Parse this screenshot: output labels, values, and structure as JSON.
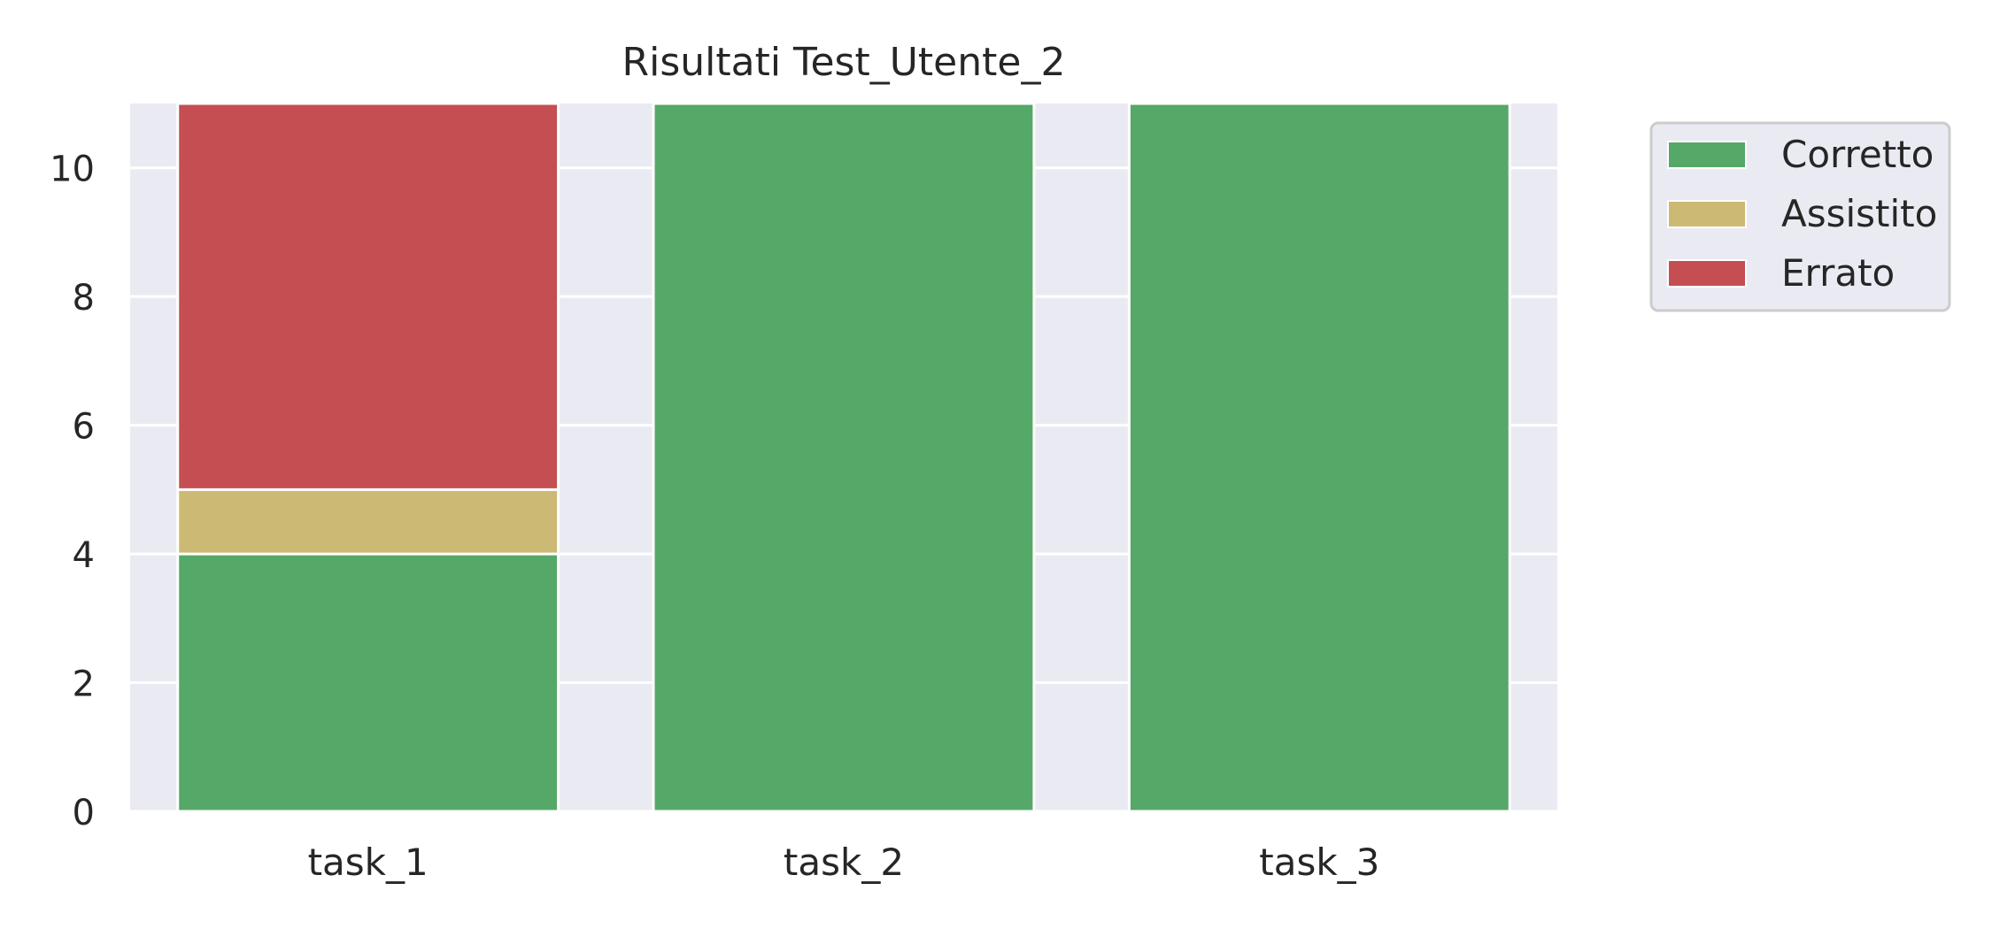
{
  "chart_data": {
    "type": "bar",
    "stacked": true,
    "title": "Risultati Test_Utente_2",
    "xlabel": "",
    "ylabel": "",
    "categories": [
      "task_1",
      "task_2",
      "task_3"
    ],
    "series": [
      {
        "name": "Corretto",
        "color": "#55a868",
        "values": [
          4,
          11,
          11
        ]
      },
      {
        "name": "Assistito",
        "color": "#ccb974",
        "values": [
          1,
          0,
          0
        ]
      },
      {
        "name": "Errato",
        "color": "#c44e52",
        "values": [
          6,
          0,
          0
        ]
      }
    ],
    "ylim": [
      0,
      11
    ],
    "yticks": [
      0,
      2,
      4,
      6,
      8,
      10
    ],
    "ytick_labels": [
      "0",
      "2",
      "4",
      "6",
      "8",
      "10"
    ],
    "grid": true,
    "plot_background": "#eaeaf2",
    "legend": {
      "placement": "outside-upper-right"
    }
  }
}
